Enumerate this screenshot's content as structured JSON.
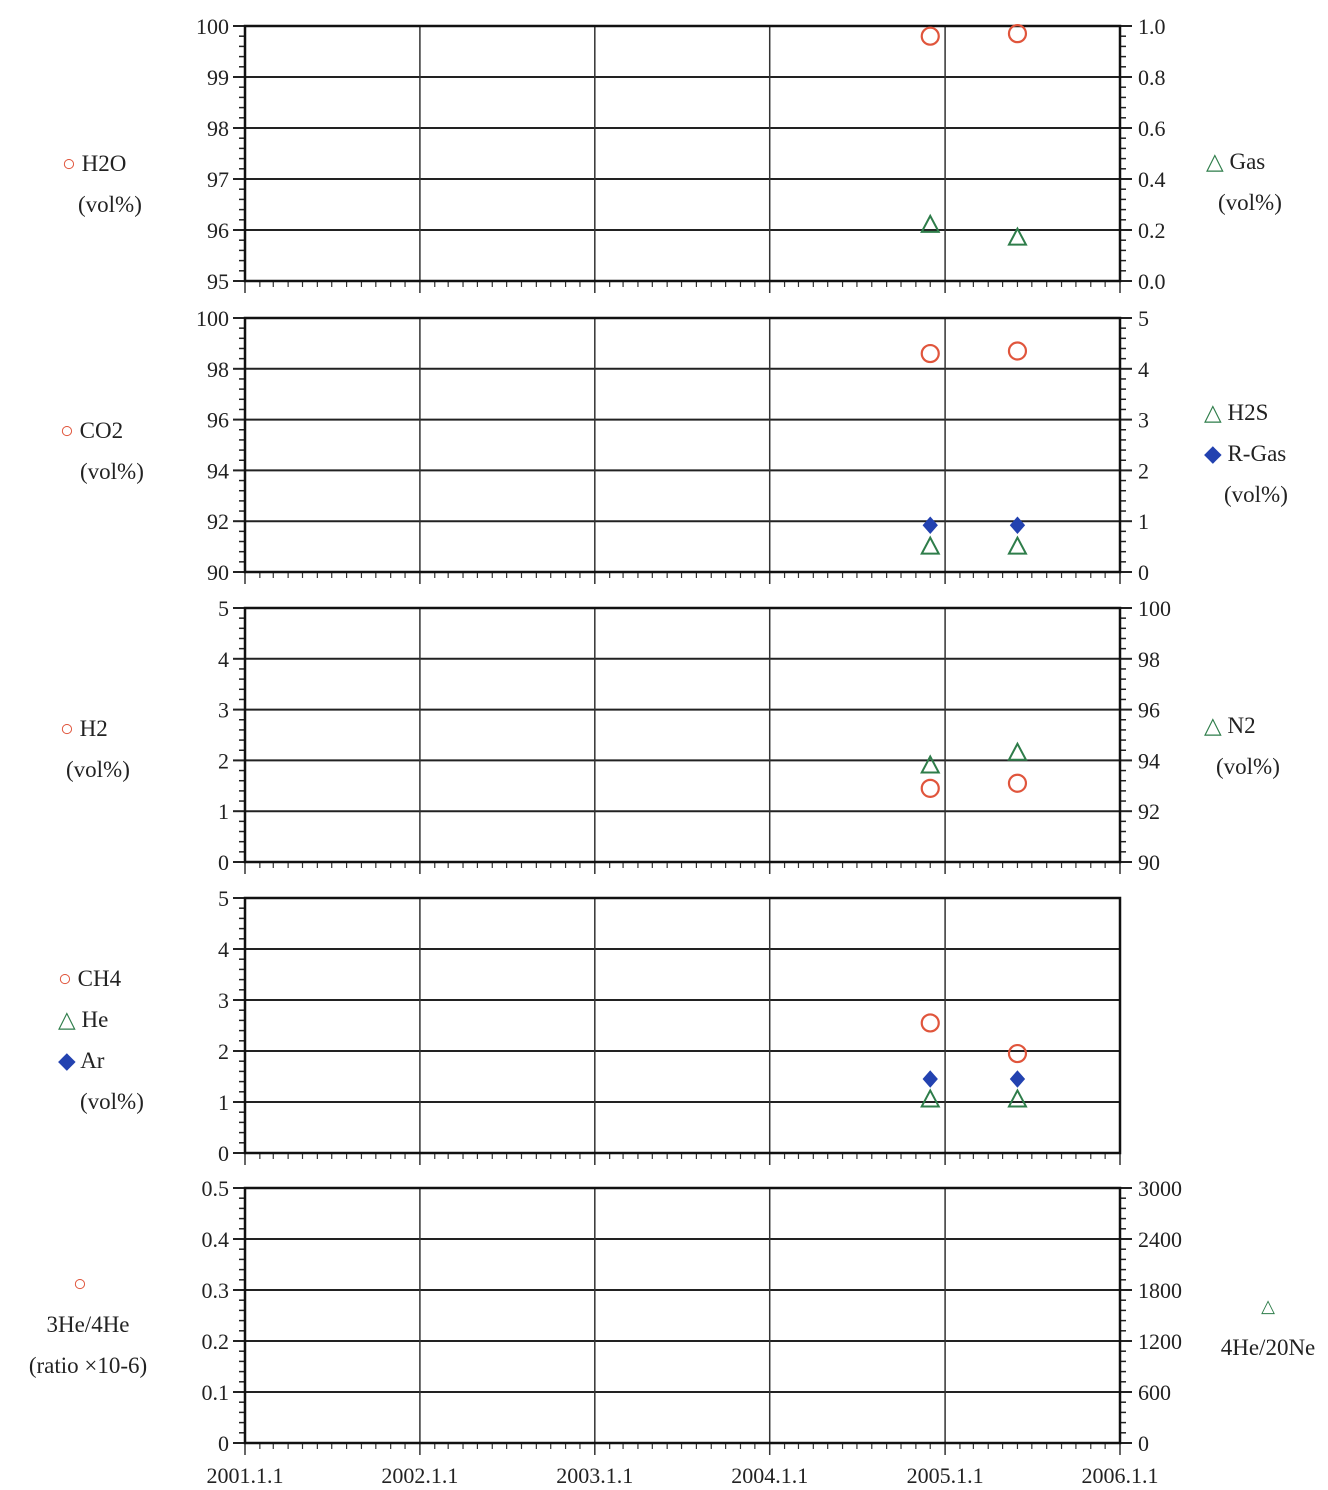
{
  "colors": {
    "circle": "#e0553c",
    "triangle": "#2e7d4a",
    "diamond": "#2342b0"
  },
  "marker_icons": {
    "circle": "○",
    "triangle": "△",
    "diamond": "◆"
  },
  "x_axis": {
    "type": "date",
    "range": [
      "2001-01-01",
      "2006-01-01"
    ],
    "tick_labels": [
      "2001.1.1",
      "2002.1.1",
      "2003.1.1",
      "2004.1.1",
      "2005.1.1",
      "2006.1.1"
    ]
  },
  "panel_labels": {
    "p1_left": [
      "H2O",
      "(vol%)"
    ],
    "p1_right": [
      "Gas",
      "(vol%)"
    ],
    "p2_left": [
      "CO2",
      "(vol%)"
    ],
    "p2_right": [
      "H2S",
      "R-Gas",
      "(vol%)"
    ],
    "p3_left": [
      "H2",
      "(vol%)"
    ],
    "p3_right": [
      "N2",
      "(vol%)"
    ],
    "p4_left": [
      "CH4",
      "He",
      "Ar",
      "(vol%)"
    ],
    "p5_left": [
      "3He/4He",
      "(ratio ×10-6)"
    ],
    "p5_right": [
      "4He/20Ne"
    ]
  },
  "chart_data": [
    {
      "type": "scatter",
      "grid": true,
      "x": [
        "2004-12-01",
        "2005-06-01"
      ],
      "left_axis": {
        "label": "H2O (vol%)",
        "ylim": [
          95,
          100
        ],
        "ticks": [
          "95",
          "96",
          "97",
          "98",
          "99",
          "100"
        ]
      },
      "right_axis": {
        "label": "Gas (vol%)",
        "ylim": [
          0,
          1.0
        ],
        "ticks": [
          "0.0",
          "0.2",
          "0.4",
          "0.6",
          "0.8",
          "1.0"
        ]
      },
      "series": [
        {
          "name": "H2O",
          "axis": "left",
          "marker": "circle",
          "values": [
            99.8,
            99.85
          ]
        },
        {
          "name": "Gas",
          "axis": "right",
          "marker": "triangle",
          "values": [
            0.22,
            0.17
          ]
        }
      ]
    },
    {
      "type": "scatter",
      "grid": true,
      "x": [
        "2004-12-01",
        "2005-06-01"
      ],
      "left_axis": {
        "label": "CO2 (vol%)",
        "ylim": [
          90,
          100
        ],
        "ticks": [
          "90",
          "92",
          "94",
          "96",
          "98",
          "100"
        ]
      },
      "right_axis": {
        "label": "H2S, R-Gas (vol%)",
        "ylim": [
          0,
          5
        ],
        "ticks": [
          "0",
          "1",
          "2",
          "3",
          "4",
          "5"
        ]
      },
      "series": [
        {
          "name": "CO2",
          "axis": "left",
          "marker": "circle",
          "values": [
            98.6,
            98.7
          ]
        },
        {
          "name": "H2S",
          "axis": "right",
          "marker": "triangle",
          "values": [
            0.5,
            0.5
          ]
        },
        {
          "name": "R-Gas",
          "axis": "right",
          "marker": "diamond",
          "values": [
            0.92,
            0.92
          ]
        }
      ]
    },
    {
      "type": "scatter",
      "grid": true,
      "x": [
        "2004-12-01",
        "2005-06-01"
      ],
      "left_axis": {
        "label": "H2 (vol%)",
        "ylim": [
          0,
          5
        ],
        "ticks": [
          "0",
          "1",
          "2",
          "3",
          "4",
          "5"
        ]
      },
      "right_axis": {
        "label": "N2 (vol%)",
        "ylim": [
          90,
          100
        ],
        "ticks": [
          "90",
          "92",
          "94",
          "96",
          "98",
          "100"
        ]
      },
      "series": [
        {
          "name": "H2",
          "axis": "left",
          "marker": "circle",
          "values": [
            1.45,
            1.55
          ]
        },
        {
          "name": "N2",
          "axis": "right",
          "marker": "triangle",
          "values": [
            93.8,
            94.3
          ]
        }
      ]
    },
    {
      "type": "scatter",
      "grid": true,
      "x": [
        "2004-12-01",
        "2005-06-01"
      ],
      "left_axis": {
        "label": "CH4, He, Ar (vol%)",
        "ylim": [
          0,
          5
        ],
        "ticks": [
          "0",
          "1",
          "2",
          "3",
          "4",
          "5"
        ]
      },
      "series": [
        {
          "name": "CH4",
          "axis": "left",
          "marker": "circle",
          "values": [
            2.55,
            1.95
          ]
        },
        {
          "name": "He",
          "axis": "left",
          "marker": "triangle",
          "values": [
            1.05,
            1.05
          ]
        },
        {
          "name": "Ar",
          "axis": "left",
          "marker": "diamond",
          "values": [
            1.45,
            1.45
          ]
        }
      ]
    },
    {
      "type": "scatter",
      "grid": true,
      "x": [],
      "left_axis": {
        "label": "3He/4He (ratio ×10-6)",
        "ylim": [
          0,
          0.5
        ],
        "ticks": [
          "0",
          "0.1",
          "0.2",
          "0.3",
          "0.4",
          "0.5"
        ]
      },
      "right_axis": {
        "label": "4He/20Ne",
        "ylim": [
          0,
          3000
        ],
        "ticks": [
          "0",
          "600",
          "1200",
          "1800",
          "2400",
          "3000"
        ]
      },
      "series": [
        {
          "name": "3He/4He",
          "axis": "left",
          "marker": "circle",
          "values": []
        },
        {
          "name": "4He/20Ne",
          "axis": "right",
          "marker": "triangle",
          "values": []
        }
      ]
    }
  ]
}
